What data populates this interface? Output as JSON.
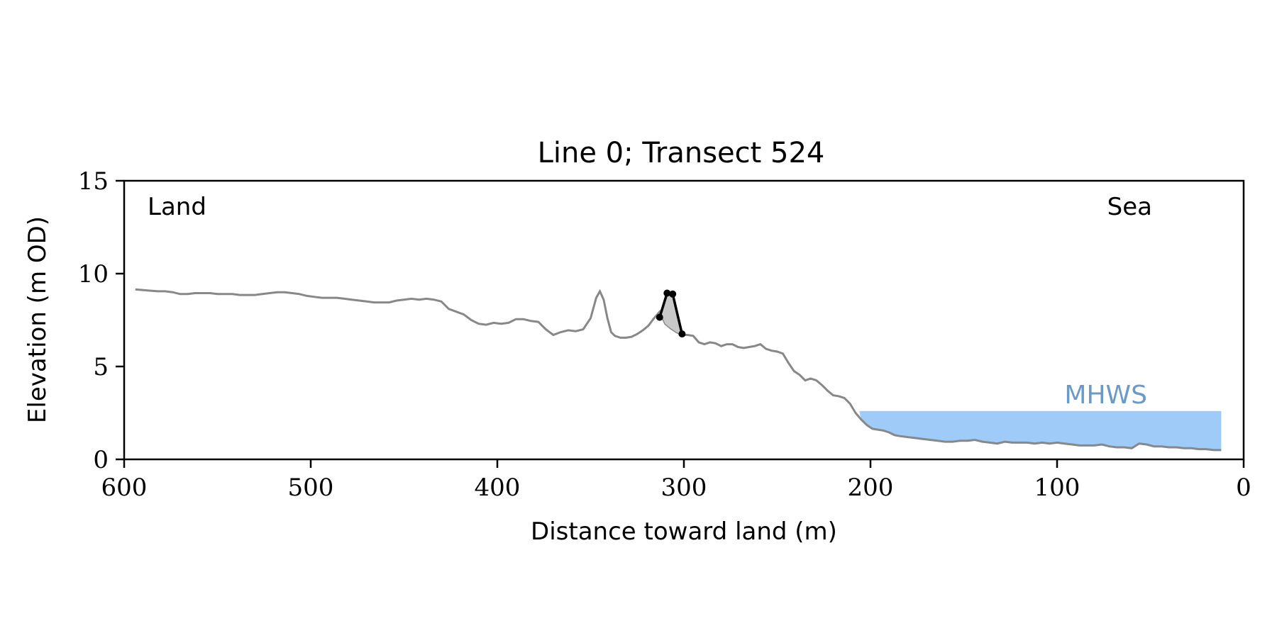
{
  "chart_data": {
    "type": "line",
    "title": "Line 0; Transect 524",
    "xlabel": "Distance toward land (m)",
    "ylabel": "Elevation (m OD)",
    "xlim": [
      600,
      0
    ],
    "ylim": [
      0,
      15
    ],
    "xticks": [
      600,
      500,
      400,
      300,
      200,
      100,
      0
    ],
    "xtick_labels": [
      "600",
      "500",
      "400",
      "300",
      "200",
      "100",
      "0"
    ],
    "yticks": [
      0,
      5,
      10,
      15
    ],
    "ytick_labels": [
      "0",
      "5",
      "10",
      "15"
    ],
    "grid": false,
    "annotations": {
      "land": "Land",
      "sea": "Sea",
      "mhws": "MHWS"
    },
    "colors": {
      "profile": "#888888",
      "water": "#9ecbf7",
      "mhws_text": "#6a9bc7",
      "feature": "#000000",
      "feature_fill": "#c8c8c8"
    },
    "mhws": {
      "elevation": 2.6,
      "x_start": 206,
      "x_end": 12
    },
    "profile": {
      "x": [
        594,
        588,
        582,
        578,
        574,
        570,
        566,
        562,
        558,
        554,
        550,
        546,
        542,
        538,
        534,
        530,
        526,
        522,
        518,
        514,
        510,
        506,
        502,
        498,
        494,
        490,
        486,
        482,
        478,
        474,
        470,
        466,
        462,
        458,
        454,
        450,
        446,
        442,
        438,
        434,
        430,
        426,
        422,
        418,
        414,
        410,
        406,
        402,
        398,
        394,
        390,
        386,
        382,
        378,
        374,
        370,
        366,
        362,
        358,
        354,
        350,
        347,
        345,
        343,
        341,
        339,
        337,
        334,
        331,
        328,
        325,
        322,
        319,
        316,
        313,
        310,
        307,
        304,
        301,
        298,
        295,
        292,
        289,
        286,
        283,
        280,
        277,
        274,
        271,
        268,
        265,
        262,
        259,
        256,
        253,
        250,
        247,
        244,
        241,
        238,
        235,
        232,
        229,
        226,
        223,
        220,
        217,
        214,
        211,
        208,
        205,
        202,
        199,
        196,
        193,
        190,
        187,
        184,
        180,
        176,
        172,
        168,
        164,
        160,
        156,
        152,
        148,
        144,
        140,
        136,
        132,
        128,
        124,
        120,
        116,
        112,
        108,
        104,
        100,
        96,
        92,
        88,
        84,
        80,
        76,
        72,
        68,
        64,
        60,
        56,
        52,
        48,
        44,
        40,
        36,
        32,
        28,
        24,
        20,
        16,
        12
      ],
      "y": [
        9.15,
        9.1,
        9.05,
        9.05,
        9.0,
        8.9,
        8.9,
        8.95,
        8.95,
        8.95,
        8.9,
        8.9,
        8.9,
        8.85,
        8.85,
        8.85,
        8.9,
        8.95,
        9.0,
        9.0,
        8.95,
        8.9,
        8.8,
        8.75,
        8.7,
        8.7,
        8.7,
        8.65,
        8.6,
        8.55,
        8.5,
        8.45,
        8.45,
        8.45,
        8.55,
        8.6,
        8.65,
        8.6,
        8.65,
        8.6,
        8.5,
        8.1,
        7.95,
        7.8,
        7.5,
        7.3,
        7.25,
        7.35,
        7.3,
        7.35,
        7.55,
        7.55,
        7.45,
        7.4,
        7.0,
        6.7,
        6.85,
        6.95,
        6.9,
        7.0,
        7.6,
        8.7,
        9.05,
        8.6,
        7.6,
        6.85,
        6.65,
        6.55,
        6.55,
        6.6,
        6.75,
        6.95,
        7.2,
        7.6,
        7.95,
        7.3,
        7.05,
        6.85,
        6.7,
        6.7,
        6.65,
        6.3,
        6.2,
        6.3,
        6.25,
        6.1,
        6.2,
        6.2,
        6.05,
        6.0,
        6.05,
        6.1,
        6.2,
        5.95,
        5.85,
        5.8,
        5.7,
        5.2,
        4.75,
        4.55,
        4.25,
        4.35,
        4.25,
        4.0,
        3.7,
        3.45,
        3.4,
        3.3,
        3.0,
        2.5,
        2.15,
        1.85,
        1.65,
        1.6,
        1.55,
        1.45,
        1.3,
        1.25,
        1.2,
        1.15,
        1.1,
        1.05,
        1.0,
        0.95,
        0.95,
        1.0,
        1.0,
        1.05,
        0.95,
        0.9,
        0.85,
        0.95,
        0.9,
        0.9,
        0.9,
        0.85,
        0.9,
        0.85,
        0.9,
        0.85,
        0.8,
        0.75,
        0.75,
        0.75,
        0.8,
        0.7,
        0.65,
        0.65,
        0.6,
        0.85,
        0.8,
        0.7,
        0.7,
        0.65,
        0.65,
        0.6,
        0.6,
        0.55,
        0.55,
        0.5,
        0.5
      ]
    },
    "feature": {
      "x": [
        313,
        309,
        306,
        301
      ],
      "y": [
        7.65,
        8.95,
        8.9,
        6.75
      ]
    }
  }
}
